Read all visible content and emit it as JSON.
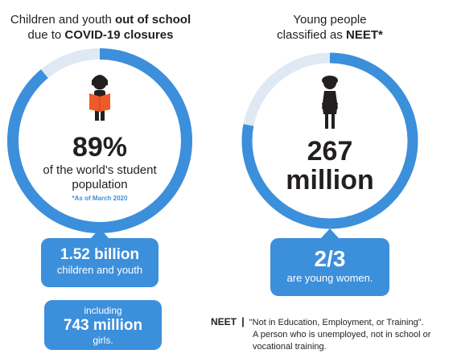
{
  "left": {
    "heading_line1_pre": "Children and youth ",
    "heading_line1_bold": "out of school",
    "heading_line2_pre": "due to ",
    "heading_line2_bold": "COVID-19 closures",
    "percent": "89%",
    "desc_line1": "of the world's student",
    "desc_line2": "population",
    "note": "*As of March 2020",
    "callout1_num": "1.52 billion",
    "callout1_text": "children and youth",
    "callout2_pre": "including",
    "callout2_num": "743 million",
    "callout2_post": "girls.",
    "ring_fraction": 0.89
  },
  "right": {
    "heading_line1": "Young people",
    "heading_line2_pre": "classified as ",
    "heading_line2_bold": "NEET*",
    "num_line1": "267",
    "num_line2": "million",
    "callout_num": "2/3",
    "callout_text": "are young women.",
    "ring_fraction": 0.78
  },
  "definition": {
    "term": "NEET",
    "separator": "|",
    "line1": "\"Not in Education, Employment, or Training\".",
    "line2": "A person who is unemployed, not in school or",
    "line3": "vocational training."
  },
  "colors": {
    "ring_fill": "#3c8fdb",
    "ring_track": "#dfe9f4",
    "callout": "#3c8fdb",
    "book": "#f05a28",
    "figure": "#231f20"
  },
  "icons": [
    "student-reading-icon",
    "young-woman-icon"
  ]
}
